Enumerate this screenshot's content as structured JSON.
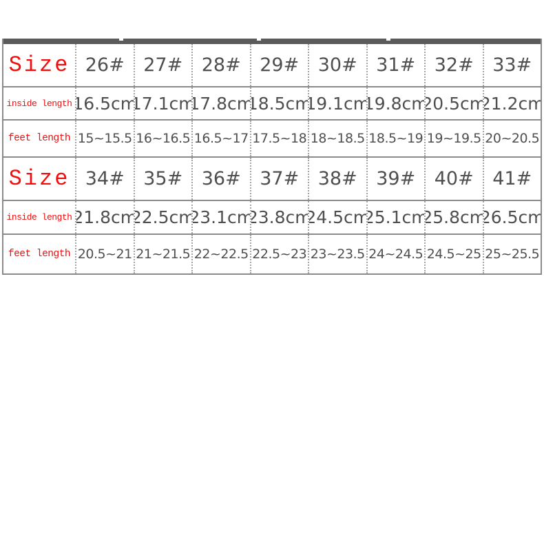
{
  "colors": {
    "label_red": "#f30d0d",
    "value_gray": "#4f4f4f",
    "band_gray": "#5b5b5b",
    "border_gray": "#8a8a8a",
    "background": "#ffffff"
  },
  "chart_data": {
    "type": "table",
    "description_visible_text_only": "shoe size chart with two stacked size ranges",
    "row_headers": [
      "Size",
      "inside length",
      "feet length",
      "Size",
      "inside length",
      "feet length"
    ],
    "rows": [
      [
        "26#",
        "27#",
        "28#",
        "29#",
        "30#",
        "31#",
        "32#",
        "33#"
      ],
      [
        "16.5cm",
        "17.1cm",
        "17.8cm",
        "18.5cm",
        "19.1cm",
        "19.8cm",
        "20.5cm",
        "21.2cm"
      ],
      [
        "15~15.5",
        "16~16.5",
        "16.5~17",
        "17.5~18",
        "18~18.5",
        "18.5~19",
        "19~19.5",
        "20~20.5"
      ],
      [
        "34#",
        "35#",
        "36#",
        "37#",
        "38#",
        "39#",
        "40#",
        "41#"
      ],
      [
        "21.8cm",
        "22.5cm",
        "23.1cm",
        "23.8cm",
        "24.5cm",
        "25.1cm",
        "25.8cm",
        "26.5cm"
      ],
      [
        "20.5~21",
        "21~21.5",
        "22~22.5",
        "22.5~23",
        "23~23.5",
        "24~24.5",
        "24.5~25",
        "25~25.5"
      ]
    ],
    "layout_hints": {
      "label_column": "left",
      "column_separators": "dotted",
      "row_separators": "solid",
      "top_band": true
    }
  }
}
